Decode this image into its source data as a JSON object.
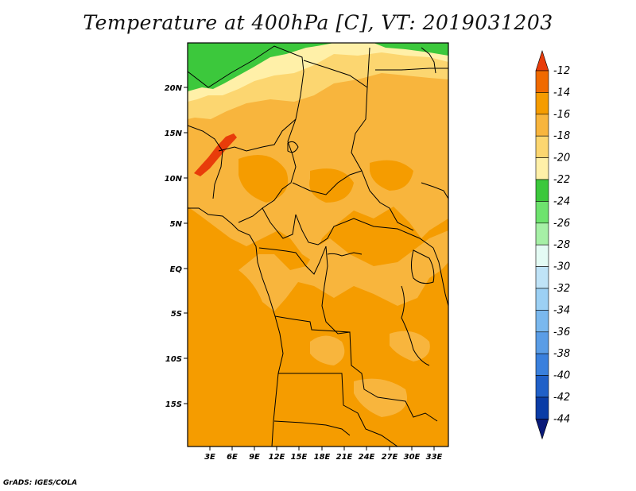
{
  "title": "Temperature at 400hPa [C], VT: 2019031203",
  "footer": "GrADS: IGES/COLA",
  "map": {
    "lat_labels": [
      "20N",
      "15N",
      "10N",
      "5N",
      "EQ",
      "5S",
      "10S",
      "15S"
    ],
    "lon_labels": [
      "3E",
      "6E",
      "9E",
      "12E",
      "15E",
      "18E",
      "21E",
      "24E",
      "27E",
      "30E",
      "33E"
    ]
  },
  "colorbar": {
    "labels": [
      "-12",
      "-14",
      "-16",
      "-18",
      "-20",
      "-22",
      "-24",
      "-26",
      "-28",
      "-30",
      "-32",
      "-34",
      "-36",
      "-38",
      "-40",
      "-42",
      "-44"
    ],
    "colors": [
      "#e83c0a",
      "#f06a00",
      "#f59c00",
      "#f8b53d",
      "#fcd670",
      "#fff0a8",
      "#3cc83c",
      "#6ee36e",
      "#a6f0a6",
      "#e4fbf4",
      "#bfe3f7",
      "#9cd0f4",
      "#7ab8ee",
      "#5a9de6",
      "#3a80dd",
      "#2060c8",
      "#0a3ca6",
      "#0a1a78"
    ]
  },
  "chart_data": {
    "type": "heatmap",
    "title": "Temperature at 400hPa [C], VT: 2019031203",
    "variable": "Temperature at 400hPa",
    "units": "C",
    "valid_time": "2019031203",
    "levels": [
      -44,
      -42,
      -40,
      -38,
      -36,
      -34,
      -32,
      -30,
      -28,
      -26,
      -24,
      -22,
      -20,
      -18,
      -16,
      -14,
      -12
    ],
    "lon_ticks": [
      "3E",
      "6E",
      "9E",
      "12E",
      "15E",
      "18E",
      "21E",
      "24E",
      "27E",
      "30E",
      "33E"
    ],
    "lat_ticks": [
      "20N",
      "15N",
      "10N",
      "5N",
      "EQ",
      "5S",
      "10S",
      "15S"
    ],
    "regions": [
      {
        "area": "far north (above 20N, west)",
        "range": "-24 to -22"
      },
      {
        "area": "northern band (~18-22N)",
        "range": "-22 to -18"
      },
      {
        "area": "Sahel / northern interior",
        "range": "-18 to -16"
      },
      {
        "area": "western Sahel streak (~10-14N, 1-6E)",
        "range": "-14 to -12"
      },
      {
        "area": "equatorial and southern Africa",
        "range": "-16 to -14"
      }
    ]
  }
}
